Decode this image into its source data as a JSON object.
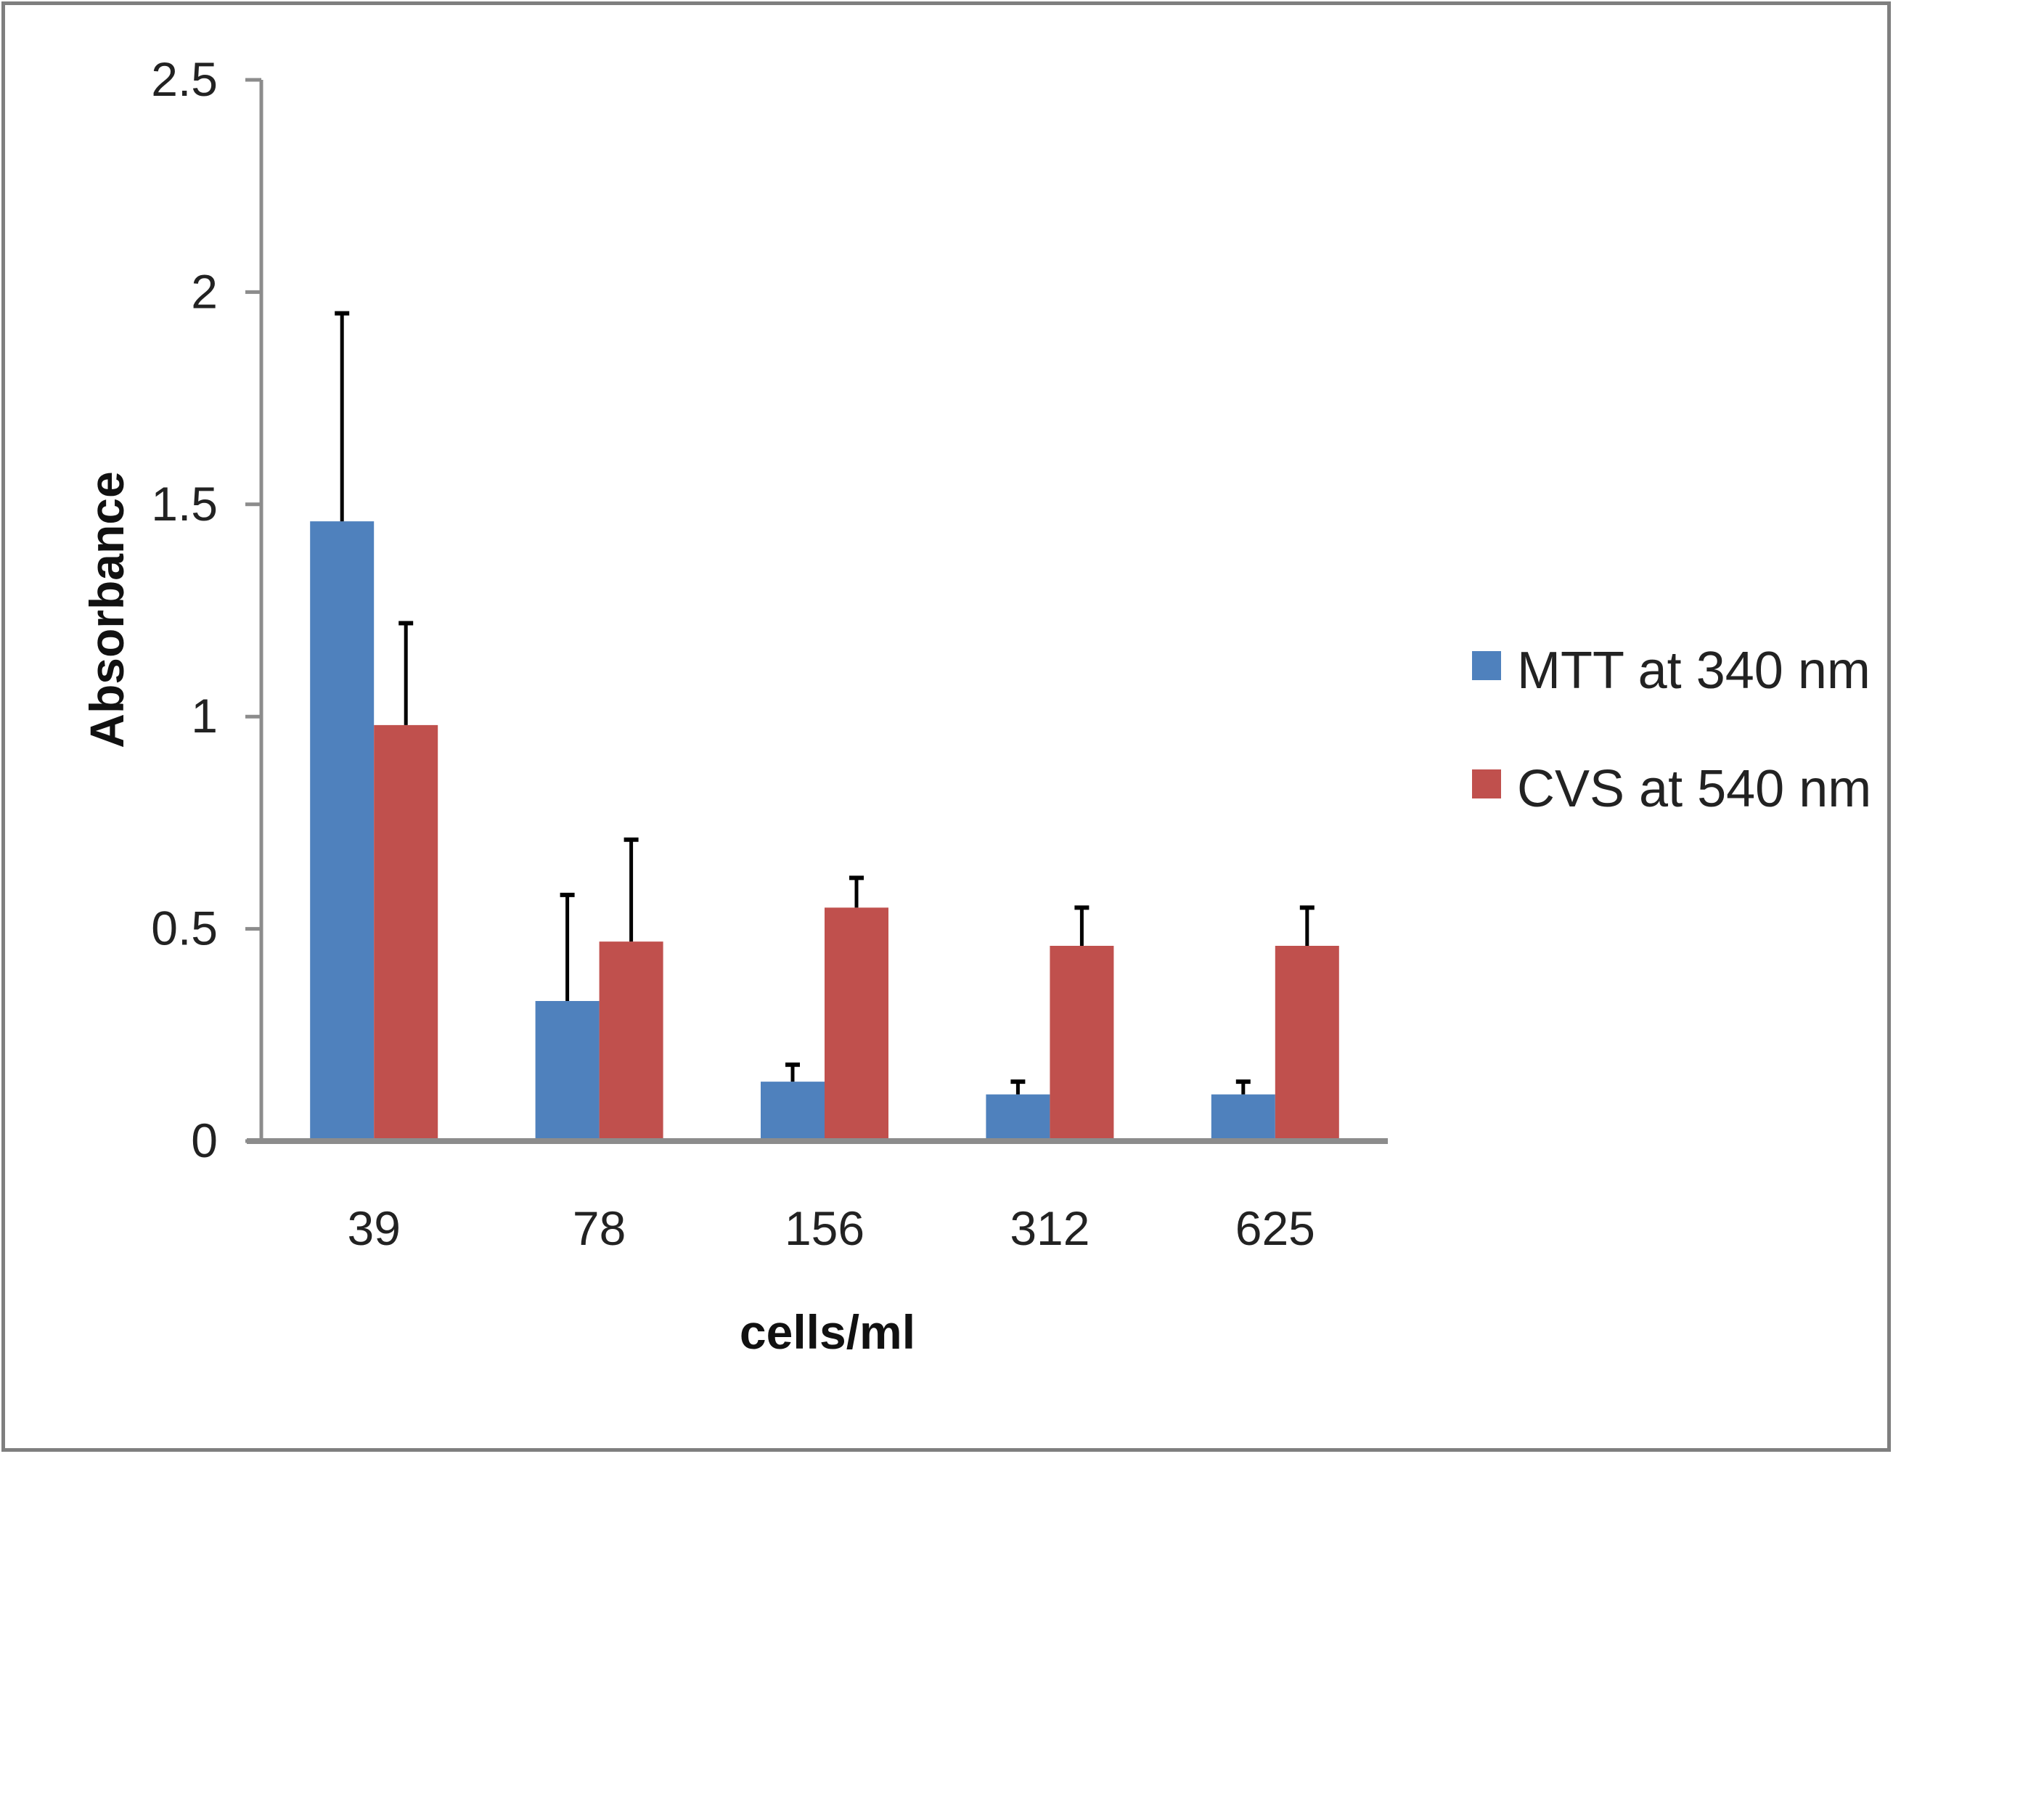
{
  "chart_data": {
    "type": "bar",
    "title": "",
    "xlabel": "cells/ml",
    "ylabel": "Absorbance",
    "categories": [
      "39",
      "78",
      "156",
      "312",
      "625"
    ],
    "ylim": [
      0,
      2.5
    ],
    "yticks": [
      "0",
      "0.5",
      "1",
      "1.5",
      "2",
      "2.5"
    ],
    "grid": false,
    "legend_position": "right",
    "error_bars": "upper only",
    "series": [
      {
        "name": "MTT at 340 nm",
        "color": "#4f81bd",
        "values": [
          1.46,
          0.33,
          0.14,
          0.11,
          0.11
        ],
        "errors": [
          0.49,
          0.25,
          0.04,
          0.03,
          0.03
        ]
      },
      {
        "name": "CVS at 540 nm",
        "color": "#c0504d",
        "values": [
          0.98,
          0.47,
          0.55,
          0.46,
          0.46
        ],
        "errors": [
          0.24,
          0.24,
          0.07,
          0.09,
          0.09
        ]
      }
    ]
  }
}
